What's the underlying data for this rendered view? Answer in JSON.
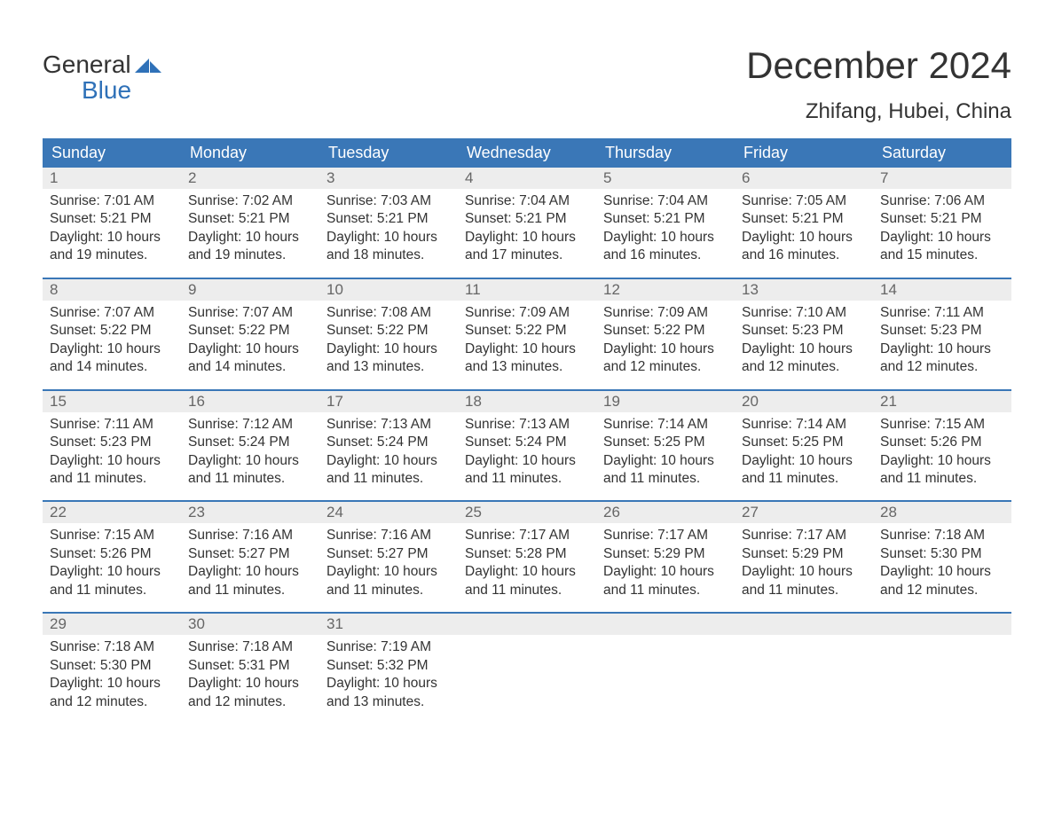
{
  "logo": {
    "top": "General",
    "bottom": "Blue",
    "flag_color": "#2f71b8"
  },
  "title": "December 2024",
  "location": "Zhifang, Hubei, China",
  "colors": {
    "header_bg": "#3a77b7",
    "header_text": "#ffffff",
    "daynum_bg": "#ededed",
    "daynum_text": "#666666",
    "body_text": "#333333",
    "accent": "#2f71b8",
    "page_bg": "#ffffff"
  },
  "dow": [
    "Sunday",
    "Monday",
    "Tuesday",
    "Wednesday",
    "Thursday",
    "Friday",
    "Saturday"
  ],
  "weeks": [
    [
      {
        "n": "1",
        "sr": "7:01 AM",
        "ss": "5:21 PM",
        "dl": "10 hours and 19 minutes."
      },
      {
        "n": "2",
        "sr": "7:02 AM",
        "ss": "5:21 PM",
        "dl": "10 hours and 19 minutes."
      },
      {
        "n": "3",
        "sr": "7:03 AM",
        "ss": "5:21 PM",
        "dl": "10 hours and 18 minutes."
      },
      {
        "n": "4",
        "sr": "7:04 AM",
        "ss": "5:21 PM",
        "dl": "10 hours and 17 minutes."
      },
      {
        "n": "5",
        "sr": "7:04 AM",
        "ss": "5:21 PM",
        "dl": "10 hours and 16 minutes."
      },
      {
        "n": "6",
        "sr": "7:05 AM",
        "ss": "5:21 PM",
        "dl": "10 hours and 16 minutes."
      },
      {
        "n": "7",
        "sr": "7:06 AM",
        "ss": "5:21 PM",
        "dl": "10 hours and 15 minutes."
      }
    ],
    [
      {
        "n": "8",
        "sr": "7:07 AM",
        "ss": "5:22 PM",
        "dl": "10 hours and 14 minutes."
      },
      {
        "n": "9",
        "sr": "7:07 AM",
        "ss": "5:22 PM",
        "dl": "10 hours and 14 minutes."
      },
      {
        "n": "10",
        "sr": "7:08 AM",
        "ss": "5:22 PM",
        "dl": "10 hours and 13 minutes."
      },
      {
        "n": "11",
        "sr": "7:09 AM",
        "ss": "5:22 PM",
        "dl": "10 hours and 13 minutes."
      },
      {
        "n": "12",
        "sr": "7:09 AM",
        "ss": "5:22 PM",
        "dl": "10 hours and 12 minutes."
      },
      {
        "n": "13",
        "sr": "7:10 AM",
        "ss": "5:23 PM",
        "dl": "10 hours and 12 minutes."
      },
      {
        "n": "14",
        "sr": "7:11 AM",
        "ss": "5:23 PM",
        "dl": "10 hours and 12 minutes."
      }
    ],
    [
      {
        "n": "15",
        "sr": "7:11 AM",
        "ss": "5:23 PM",
        "dl": "10 hours and 11 minutes."
      },
      {
        "n": "16",
        "sr": "7:12 AM",
        "ss": "5:24 PM",
        "dl": "10 hours and 11 minutes."
      },
      {
        "n": "17",
        "sr": "7:13 AM",
        "ss": "5:24 PM",
        "dl": "10 hours and 11 minutes."
      },
      {
        "n": "18",
        "sr": "7:13 AM",
        "ss": "5:24 PM",
        "dl": "10 hours and 11 minutes."
      },
      {
        "n": "19",
        "sr": "7:14 AM",
        "ss": "5:25 PM",
        "dl": "10 hours and 11 minutes."
      },
      {
        "n": "20",
        "sr": "7:14 AM",
        "ss": "5:25 PM",
        "dl": "10 hours and 11 minutes."
      },
      {
        "n": "21",
        "sr": "7:15 AM",
        "ss": "5:26 PM",
        "dl": "10 hours and 11 minutes."
      }
    ],
    [
      {
        "n": "22",
        "sr": "7:15 AM",
        "ss": "5:26 PM",
        "dl": "10 hours and 11 minutes."
      },
      {
        "n": "23",
        "sr": "7:16 AM",
        "ss": "5:27 PM",
        "dl": "10 hours and 11 minutes."
      },
      {
        "n": "24",
        "sr": "7:16 AM",
        "ss": "5:27 PM",
        "dl": "10 hours and 11 minutes."
      },
      {
        "n": "25",
        "sr": "7:17 AM",
        "ss": "5:28 PM",
        "dl": "10 hours and 11 minutes."
      },
      {
        "n": "26",
        "sr": "7:17 AM",
        "ss": "5:29 PM",
        "dl": "10 hours and 11 minutes."
      },
      {
        "n": "27",
        "sr": "7:17 AM",
        "ss": "5:29 PM",
        "dl": "10 hours and 11 minutes."
      },
      {
        "n": "28",
        "sr": "7:18 AM",
        "ss": "5:30 PM",
        "dl": "10 hours and 12 minutes."
      }
    ],
    [
      {
        "n": "29",
        "sr": "7:18 AM",
        "ss": "5:30 PM",
        "dl": "10 hours and 12 minutes."
      },
      {
        "n": "30",
        "sr": "7:18 AM",
        "ss": "5:31 PM",
        "dl": "10 hours and 12 minutes."
      },
      {
        "n": "31",
        "sr": "7:19 AM",
        "ss": "5:32 PM",
        "dl": "10 hours and 13 minutes."
      },
      null,
      null,
      null,
      null
    ]
  ],
  "labels": {
    "sunrise": "Sunrise:",
    "sunset": "Sunset:",
    "daylight": "Daylight:"
  }
}
